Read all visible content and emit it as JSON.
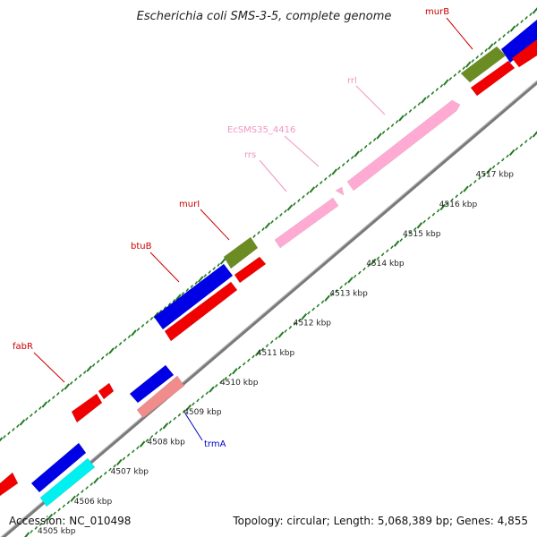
{
  "title": "Escherichia coli SMS-3-5, complete genome",
  "footer": {
    "accession": "Accession: NC_010498",
    "topology": "Topology: circular; Length: 5,068,389 bp; Genes: 4,855"
  },
  "colors": {
    "backbone": "#8c8c8c",
    "dots": "#1f7a1f",
    "blue": "#0000e6",
    "red": "#f00000",
    "olive": "#6b8c23",
    "pink": "#ffaad2",
    "salmon": "#f08c8c",
    "cyan": "#00f0f0",
    "labelRed": "#cc0000",
    "labelPink": "#f096c0",
    "labelBlue": "#0000cc"
  },
  "scale_ticks": [
    {
      "label": "4505 kbp"
    },
    {
      "label": "4506 kbp"
    },
    {
      "label": "4507 kbp"
    },
    {
      "label": "4508 kbp"
    },
    {
      "label": "4509 kbp"
    },
    {
      "label": "4510 kbp"
    },
    {
      "label": "4511 kbp"
    },
    {
      "label": "4512 kbp"
    },
    {
      "label": "4513 kbp"
    },
    {
      "label": "4514 kbp"
    },
    {
      "label": "4515 kbp"
    },
    {
      "label": "4516 kbp"
    },
    {
      "label": "4517 kbp"
    }
  ],
  "gene_labels": [
    {
      "name": "fabR",
      "color": "labelRed"
    },
    {
      "name": "btuB",
      "color": "labelRed"
    },
    {
      "name": "murI",
      "color": "labelRed"
    },
    {
      "name": "rrs",
      "color": "labelPink"
    },
    {
      "name": "EcSMS35_4416",
      "color": "labelPink"
    },
    {
      "name": "rrl",
      "color": "labelPink"
    },
    {
      "name": "murB",
      "color": "labelRed"
    },
    {
      "name": "trmA",
      "color": "labelBlue"
    }
  ]
}
